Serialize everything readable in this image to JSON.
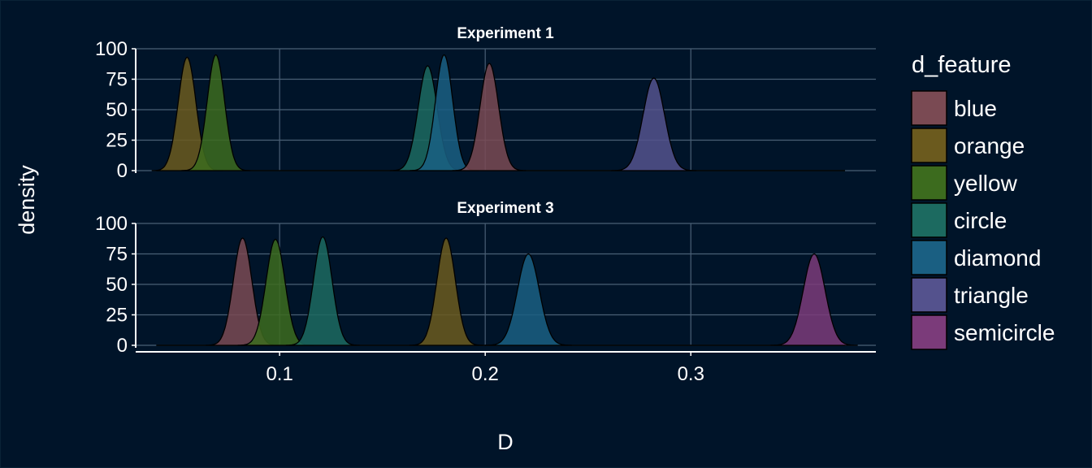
{
  "chart_data": {
    "type": "area",
    "subtype": "density",
    "xlabel": "D",
    "ylabel": "density",
    "xlim": [
      0.03,
      0.39
    ],
    "ylim": [
      0,
      100
    ],
    "x_ticks": [
      0.1,
      0.2,
      0.3
    ],
    "x_tick_labels": [
      "0.1",
      "0.2",
      "0.3"
    ],
    "y_ticks": [
      0,
      25,
      50,
      75,
      100
    ],
    "y_tick_labels": [
      "0",
      "25",
      "50",
      "75",
      "100"
    ],
    "grid": true,
    "legend": {
      "title": "d_feature",
      "position": "right",
      "items": [
        {
          "label": "blue",
          "color": "#7a4a53"
        },
        {
          "label": "orange",
          "color": "#6b5a1e"
        },
        {
          "label": "yellow",
          "color": "#3c6b1e"
        },
        {
          "label": "circle",
          "color": "#1c6a60"
        },
        {
          "label": "diamond",
          "color": "#1a5f82"
        },
        {
          "label": "triangle",
          "color": "#54528d"
        },
        {
          "label": "semicircle",
          "color": "#7b3b7a"
        }
      ]
    },
    "panels": [
      {
        "title": "Experiment 1",
        "series": [
          {
            "name": "orange",
            "peak_x": 0.055,
            "peak_density": 93,
            "sd": 0.0043
          },
          {
            "name": "yellow",
            "peak_x": 0.069,
            "peak_density": 95,
            "sd": 0.0042
          },
          {
            "name": "circle",
            "peak_x": 0.172,
            "peak_density": 86,
            "sd": 0.0046
          },
          {
            "name": "diamond",
            "peak_x": 0.18,
            "peak_density": 95,
            "sd": 0.0042
          },
          {
            "name": "blue",
            "peak_x": 0.202,
            "peak_density": 88,
            "sd": 0.0045
          },
          {
            "name": "triangle",
            "peak_x": 0.282,
            "peak_density": 76,
            "sd": 0.0052
          }
        ]
      },
      {
        "title": "Experiment 3",
        "series": [
          {
            "name": "blue",
            "peak_x": 0.082,
            "peak_density": 88,
            "sd": 0.0045
          },
          {
            "name": "yellow",
            "peak_x": 0.098,
            "peak_density": 87,
            "sd": 0.0046
          },
          {
            "name": "circle",
            "peak_x": 0.121,
            "peak_density": 89,
            "sd": 0.0045
          },
          {
            "name": "orange",
            "peak_x": 0.181,
            "peak_density": 88,
            "sd": 0.0045
          },
          {
            "name": "diamond",
            "peak_x": 0.221,
            "peak_density": 75,
            "sd": 0.0053
          },
          {
            "name": "semicircle",
            "peak_x": 0.36,
            "peak_density": 75,
            "sd": 0.0053
          }
        ]
      }
    ]
  }
}
